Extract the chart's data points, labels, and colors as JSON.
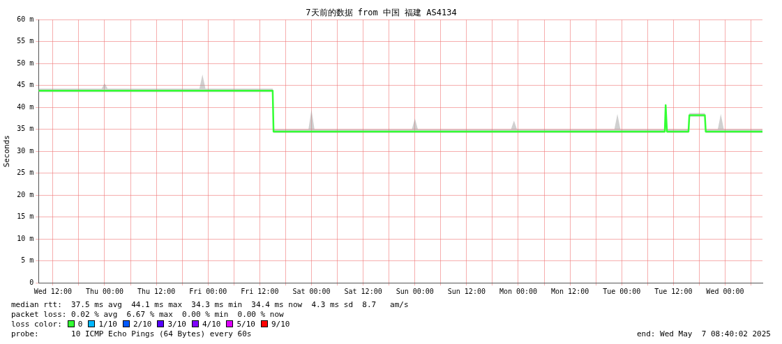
{
  "chart_data": {
    "type": "line",
    "title": "7天前的数据 from 中国 福建 AS4134",
    "ylabel": "Seconds",
    "x": [
      "2025-04-30T08:40",
      "2025-04-30T23:18",
      "2025-05-01T00:00",
      "2025-05-01T00:42",
      "2025-05-01T22:00",
      "2025-05-01T22:42",
      "2025-05-01T23:24",
      "2025-05-02T15:00",
      "2025-05-02T15:12",
      "2025-05-02T23:18",
      "2025-05-03T00:00",
      "2025-05-03T00:42",
      "2025-05-03T23:18",
      "2025-05-04T00:00",
      "2025-05-04T00:42",
      "2025-05-04T22:18",
      "2025-05-04T23:00",
      "2025-05-04T23:42",
      "2025-05-05T22:18",
      "2025-05-05T23:00",
      "2025-05-05T23:42",
      "2025-05-06T10:00",
      "2025-05-06T10:12",
      "2025-05-06T10:30",
      "2025-05-06T15:30",
      "2025-05-06T15:42",
      "2025-05-06T19:18",
      "2025-05-06T19:30",
      "2025-05-06T22:18",
      "2025-05-06T23:00",
      "2025-05-06T23:42",
      "2025-05-07T08:40"
    ],
    "series": [
      {
        "color": "#33ff33",
        "values": [
          43.8,
          43.8,
          43.8,
          43.8,
          43.8,
          43.8,
          43.8,
          43.8,
          34.5,
          34.5,
          34.5,
          34.5,
          34.5,
          34.5,
          34.5,
          34.5,
          34.5,
          34.5,
          34.5,
          34.5,
          34.5,
          34.5,
          40.5,
          34.5,
          34.5,
          38.2,
          38.2,
          34.5,
          34.5,
          34.5,
          34.5,
          34.5
        ],
        "lower": [
          43.5,
          43.5,
          43.5,
          43.5,
          43.5,
          43.5,
          43.5,
          43.5,
          34.2,
          34.2,
          34.2,
          34.2,
          34.2,
          34.2,
          34.2,
          34.2,
          34.2,
          34.2,
          34.2,
          34.2,
          34.2,
          34.2,
          39.5,
          34.2,
          34.2,
          37.9,
          37.9,
          34.2,
          34.2,
          34.2,
          34.2,
          34.2
        ],
        "upper": [
          44.3,
          44.3,
          45.5,
          44.3,
          44.3,
          47.5,
          44.3,
          44.3,
          35,
          35,
          39.5,
          35,
          35,
          37.5,
          35,
          35,
          37,
          35,
          35,
          38.5,
          35,
          35,
          41,
          35,
          35,
          38.7,
          38.7,
          35,
          35,
          38.5,
          35,
          35
        ]
      }
    ],
    "xlim": [
      "2025-04-30T08:40",
      "2025-05-07T08:40"
    ],
    "xticks": [
      {
        "value": "2025-04-30T12:00",
        "label": "Wed 12:00"
      },
      {
        "value": "2025-04-30T18:00",
        "label": null
      },
      {
        "value": "2025-05-01T00:00",
        "label": "Thu 00:00"
      },
      {
        "value": "2025-05-01T06:00",
        "label": null
      },
      {
        "value": "2025-05-01T12:00",
        "label": "Thu 12:00"
      },
      {
        "value": "2025-05-01T18:00",
        "label": null
      },
      {
        "value": "2025-05-02T00:00",
        "label": "Fri 00:00"
      },
      {
        "value": "2025-05-02T06:00",
        "label": null
      },
      {
        "value": "2025-05-02T12:00",
        "label": "Fri 12:00"
      },
      {
        "value": "2025-05-02T18:00",
        "label": null
      },
      {
        "value": "2025-05-03T00:00",
        "label": "Sat 00:00"
      },
      {
        "value": "2025-05-03T06:00",
        "label": null
      },
      {
        "value": "2025-05-03T12:00",
        "label": "Sat 12:00"
      },
      {
        "value": "2025-05-03T18:00",
        "label": null
      },
      {
        "value": "2025-05-04T00:00",
        "label": "Sun 00:00"
      },
      {
        "value": "2025-05-04T06:00",
        "label": null
      },
      {
        "value": "2025-05-04T12:00",
        "label": "Sun 12:00"
      },
      {
        "value": "2025-05-04T18:00",
        "label": null
      },
      {
        "value": "2025-05-05T00:00",
        "label": "Mon 00:00"
      },
      {
        "value": "2025-05-05T06:00",
        "label": null
      },
      {
        "value": "2025-05-05T12:00",
        "label": "Mon 12:00"
      },
      {
        "value": "2025-05-05T18:00",
        "label": null
      },
      {
        "value": "2025-05-06T00:00",
        "label": "Tue 00:00"
      },
      {
        "value": "2025-05-06T06:00",
        "label": null
      },
      {
        "value": "2025-05-06T12:00",
        "label": "Tue 12:00"
      },
      {
        "value": "2025-05-06T18:00",
        "label": null
      },
      {
        "value": "2025-05-07T00:00",
        "label": "Wed 00:00"
      },
      {
        "value": "2025-05-07T06:00",
        "label": null
      }
    ],
    "ylim": [
      0,
      60
    ],
    "yticks": [
      {
        "value": 0,
        "label": "0"
      },
      {
        "value": 5,
        "label": "5 m"
      },
      {
        "value": 10,
        "label": "10 m"
      },
      {
        "value": 15,
        "label": "15 m"
      },
      {
        "value": 20,
        "label": "20 m"
      },
      {
        "value": 25,
        "label": "25 m"
      },
      {
        "value": 30,
        "label": "30 m"
      },
      {
        "value": 35,
        "label": "35 m"
      },
      {
        "value": 40,
        "label": "40 m"
      },
      {
        "value": 45,
        "label": "45 m"
      },
      {
        "value": 50,
        "label": "50 m"
      },
      {
        "value": 55,
        "label": "55 m"
      },
      {
        "value": 60,
        "label": "60 m"
      }
    ],
    "grid": true,
    "legend": false,
    "marker": "none",
    "line_style": "solid",
    "annotations": [
      "median rtt:  37.5 ms avg  44.1 ms max  34.3 ms min  34.4 ms now  4.3 ms sd  8.7   am/s",
      "packet loss: 0.02 % avg  6.67 % max  0.00 % min  0.00 % now",
      "loss color:",
      "0",
      "1/10",
      "2/10",
      "3/10",
      "4/10",
      "5/10",
      "9/10",
      "probe:       10 ICMP Echo Pings (64 Bytes) every 60s",
      "end: Wed May  7 08:40:02 2025"
    ]
  }
}
